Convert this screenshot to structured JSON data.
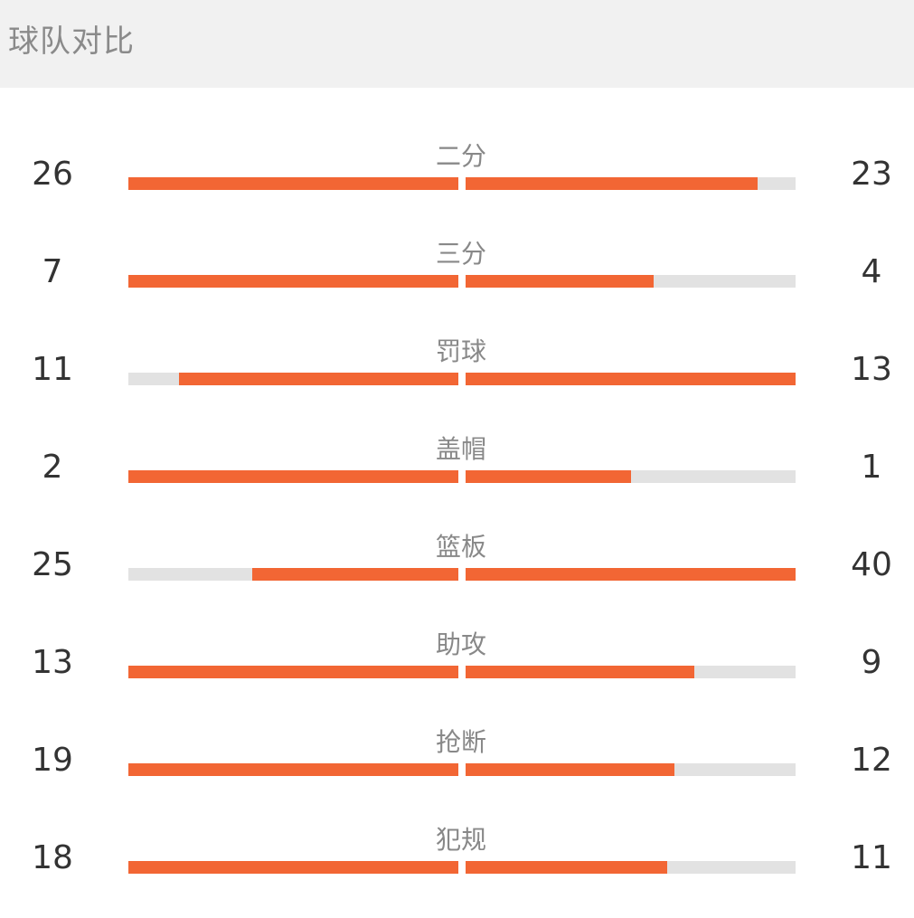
{
  "header": {
    "title": "球队对比"
  },
  "colors": {
    "bar_fill": "#f26634",
    "bar_track": "#e2e2e2"
  },
  "stats": [
    {
      "label": "二分",
      "left": "26",
      "right": "23",
      "left_fill": 1.0,
      "right_fill": 0.885
    },
    {
      "label": "三分",
      "left": "7",
      "right": "4",
      "left_fill": 1.0,
      "right_fill": 0.571
    },
    {
      "label": "罚球",
      "left": "11",
      "right": "13",
      "left_fill": 0.846,
      "right_fill": 1.0
    },
    {
      "label": "盖帽",
      "left": "2",
      "right": "1",
      "left_fill": 1.0,
      "right_fill": 0.5
    },
    {
      "label": "篮板",
      "left": "25",
      "right": "40",
      "left_fill": 0.625,
      "right_fill": 1.0
    },
    {
      "label": "助攻",
      "left": "13",
      "right": "9",
      "left_fill": 1.0,
      "right_fill": 0.692
    },
    {
      "label": "抢断",
      "left": "19",
      "right": "12",
      "left_fill": 1.0,
      "right_fill": 0.632
    },
    {
      "label": "犯规",
      "left": "18",
      "right": "11",
      "left_fill": 1.0,
      "right_fill": 0.611
    }
  ]
}
